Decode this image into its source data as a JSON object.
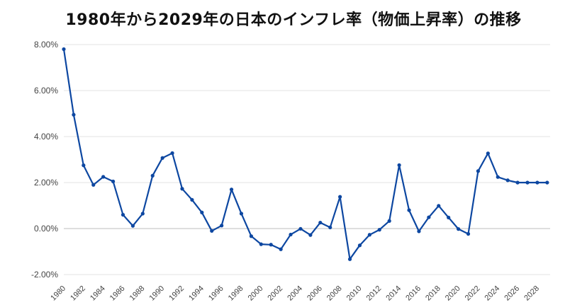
{
  "chart_data": {
    "type": "line",
    "title": "1980年から2029年の日本のインフレ率（物価上昇率）の推移",
    "xlabel": "",
    "ylabel": "",
    "ylim": [
      -2,
      8
    ],
    "y_ticks": [
      "8.00%",
      "6.00%",
      "4.00%",
      "2.00%",
      "0.00%",
      "-2.00%"
    ],
    "x_ticks": [
      "1980",
      "1982",
      "1984",
      "1986",
      "1988",
      "1990",
      "1992",
      "1994",
      "1996",
      "1998",
      "2000",
      "2002",
      "2004",
      "2006",
      "2008",
      "2010",
      "2012",
      "2014",
      "2016",
      "2018",
      "2020",
      "2022",
      "2024",
      "2026",
      "2028"
    ],
    "grid": true,
    "color": "#0d47a1",
    "series": [
      {
        "x": [
          1980,
          1981,
          1982,
          1983,
          1984,
          1985,
          1986,
          1987,
          1988,
          1989,
          1990,
          1991,
          1992,
          1993,
          1994,
          1995,
          1996,
          1997,
          1998,
          1999,
          2000,
          2001,
          2002,
          2003,
          2004,
          2005,
          2006,
          2007,
          2008,
          2009,
          2010,
          2011,
          2012,
          2013,
          2014,
          2015,
          2016,
          2017,
          2018,
          2019,
          2020,
          2021,
          2022,
          2023,
          2024,
          2025,
          2026,
          2027,
          2028,
          2029
        ],
        "values": [
          7.8,
          4.95,
          2.75,
          1.9,
          2.25,
          2.05,
          0.6,
          0.12,
          0.65,
          2.3,
          3.07,
          3.28,
          1.73,
          1.25,
          0.7,
          -0.1,
          0.13,
          1.7,
          0.65,
          -0.33,
          -0.68,
          -0.7,
          -0.9,
          -0.26,
          -0.01,
          -0.28,
          0.26,
          0.05,
          1.38,
          -1.33,
          -0.73,
          -0.27,
          -0.05,
          0.33,
          2.76,
          0.8,
          -0.12,
          0.49,
          0.99,
          0.48,
          -0.02,
          -0.23,
          2.5,
          3.27,
          2.24,
          2.1,
          2.0,
          2.0,
          2.0,
          2.0
        ]
      }
    ]
  }
}
